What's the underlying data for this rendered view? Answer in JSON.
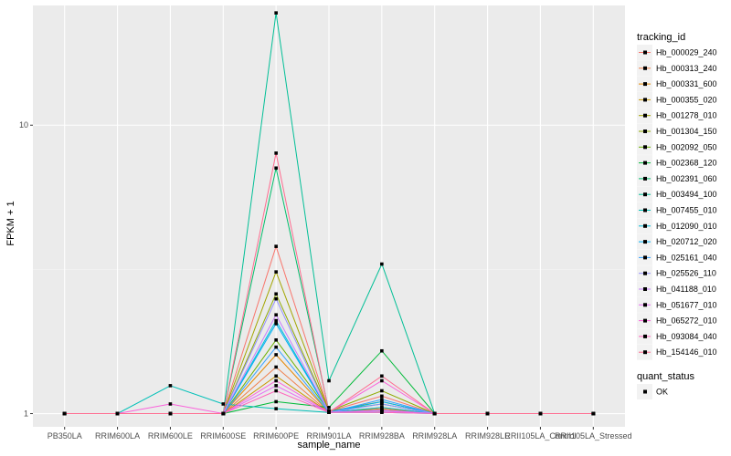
{
  "chart_data": {
    "type": "line",
    "xlabel": "sample_name",
    "ylabel": "FPKM + 1",
    "y_scale": "log10",
    "ylim": [
      0.9,
      26
    ],
    "y_ticks": [
      1,
      10
    ],
    "y_tick_labels": [
      "1",
      "10"
    ],
    "categories": [
      "PB350LA",
      "RRIM600LA",
      "RRIM600LE",
      "RRIM600SE",
      "RRIM600PE",
      "RRIM901LA",
      "RRIM928BA",
      "RRIM928LA",
      "RRIM928LE",
      "RRII105LA_Control",
      "RRII105LA_Stressed"
    ],
    "category_labels": [
      "PB350LA",
      "RRIM600LA",
      "RRIM600LE",
      "RRIM600SE",
      "RRIM600PE",
      "RRIM901LA",
      "RRIM928BA",
      "RRIM928LA",
      "RRIM928LE",
      "RRII105LA_Control",
      "RRII105LA_Stressed"
    ],
    "legend": {
      "title": "tracking_id",
      "position": "right",
      "status_title": "quant_status",
      "status_label": "OK"
    },
    "series": [
      {
        "name": "Hb_000029_240",
        "color": "#F8766D",
        "values": [
          1,
          1,
          1,
          1,
          3.8,
          1.02,
          1.15,
          1,
          1,
          1,
          1
        ]
      },
      {
        "name": "Hb_000313_240",
        "color": "#F07F4A",
        "values": [
          1,
          1,
          1,
          1,
          1.45,
          1.01,
          1.05,
          1,
          1,
          1,
          1
        ]
      },
      {
        "name": "Hb_000331_600",
        "color": "#E58700",
        "values": [
          1,
          1,
          1,
          1,
          1.6,
          1.01,
          1.04,
          1,
          1,
          1,
          1
        ]
      },
      {
        "name": "Hb_000355_020",
        "color": "#C99800",
        "values": [
          1,
          1,
          1,
          1,
          1.35,
          1.01,
          1.02,
          1,
          1,
          1,
          1
        ]
      },
      {
        "name": "Hb_001278_010",
        "color": "#A3A500",
        "values": [
          1,
          1,
          1,
          1,
          3.1,
          1.02,
          1.1,
          1,
          1,
          1,
          1
        ]
      },
      {
        "name": "Hb_001304_150",
        "color": "#8FAA00",
        "values": [
          1,
          1,
          1,
          1,
          2.6,
          1.02,
          1.2,
          1,
          1,
          1,
          1
        ]
      },
      {
        "name": "Hb_002092_050",
        "color": "#6BB100",
        "values": [
          1,
          1,
          1,
          1,
          1.8,
          1.02,
          1.03,
          1,
          1,
          1,
          1
        ]
      },
      {
        "name": "Hb_002368_120",
        "color": "#00BA38",
        "values": [
          1,
          1,
          1,
          1,
          1.1,
          1.05,
          1.65,
          1,
          1,
          1,
          1
        ]
      },
      {
        "name": "Hb_002391_060",
        "color": "#00BE6C",
        "values": [
          1,
          1,
          1,
          1,
          7.1,
          1.02,
          1.08,
          1,
          1,
          1,
          1
        ]
      },
      {
        "name": "Hb_003494_100",
        "color": "#00BF96",
        "values": [
          1,
          1,
          1,
          1,
          24.5,
          1.3,
          3.3,
          1,
          1,
          1,
          1
        ]
      },
      {
        "name": "Hb_007455_010",
        "color": "#00C0B8",
        "values": [
          1,
          1,
          1.25,
          1.08,
          1.04,
          1.01,
          1.01,
          1,
          1,
          1,
          1
        ]
      },
      {
        "name": "Hb_012090_010",
        "color": "#00BCD8",
        "values": [
          1,
          1,
          1,
          1,
          2.1,
          1.01,
          1.05,
          1,
          1,
          1,
          1
        ]
      },
      {
        "name": "Hb_020712_020",
        "color": "#00B0F6",
        "values": [
          1,
          1,
          1,
          1,
          2.05,
          1.01,
          1.1,
          1,
          1,
          1,
          1
        ]
      },
      {
        "name": "Hb_025161_040",
        "color": "#35A2FF",
        "values": [
          1,
          1,
          1,
          1,
          1.7,
          1.01,
          1.12,
          1,
          1,
          1,
          1
        ]
      },
      {
        "name": "Hb_025526_110",
        "color": "#9590FF",
        "values": [
          1,
          1,
          1,
          1,
          2.5,
          1.01,
          1.08,
          1,
          1,
          1,
          1
        ]
      },
      {
        "name": "Hb_041188_010",
        "color": "#C77CFF",
        "values": [
          1,
          1,
          1,
          1,
          2.2,
          1.01,
          1.03,
          1,
          1,
          1,
          1
        ]
      },
      {
        "name": "Hb_051677_010",
        "color": "#E76BF3",
        "values": [
          1,
          1,
          1,
          1,
          1.25,
          1.01,
          1.02,
          1,
          1,
          1,
          1
        ]
      },
      {
        "name": "Hb_065272_010",
        "color": "#FA62DB",
        "values": [
          1,
          1,
          1.08,
          1,
          1.3,
          1.01,
          1.3,
          1,
          1,
          1,
          1
        ]
      },
      {
        "name": "Hb_093084_040",
        "color": "#FF62BC",
        "values": [
          1,
          1,
          1,
          1,
          1.2,
          1.01,
          1.01,
          1,
          1,
          1,
          1
        ]
      },
      {
        "name": "Hb_154146_010",
        "color": "#FF6C90",
        "values": [
          1,
          1,
          1,
          1,
          8.0,
          1.01,
          1.35,
          1,
          1,
          1,
          1
        ]
      }
    ]
  }
}
